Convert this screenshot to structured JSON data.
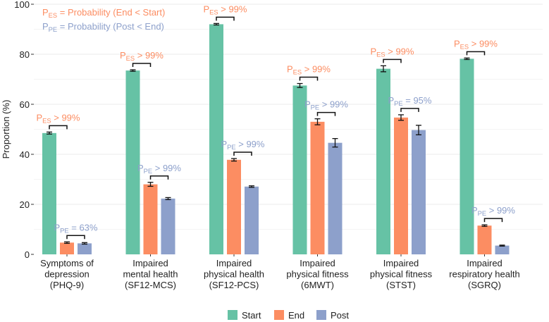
{
  "chart_data": {
    "type": "bar",
    "ylabel": "Proportion (%)",
    "ylim": [
      0,
      100
    ],
    "yticks": [
      "0",
      "20",
      "40",
      "60",
      "80",
      "100"
    ],
    "categories": [
      {
        "line1": "Symptoms of",
        "line2": "depression",
        "line3": "(PHQ-9)"
      },
      {
        "line1": "Impaired",
        "line2": "mental health",
        "line3": "(SF12-MCS)"
      },
      {
        "line1": "Impaired",
        "line2": "physical health",
        "line3": "(SF12-PCS)"
      },
      {
        "line1": "Impaired",
        "line2": "physical fitness",
        "line3": "(6MWT)"
      },
      {
        "line1": "Impaired",
        "line2": "physical fitness",
        "line3": "(STST)"
      },
      {
        "line1": "Impaired",
        "line2": "respiratory health",
        "line3": "(SGRQ)"
      }
    ],
    "series": [
      {
        "name": "Start",
        "color": "#66c2a5",
        "values": [
          48.5,
          73.5,
          92.0,
          67.5,
          74.2,
          78.2
        ],
        "errors": [
          0.4,
          0.3,
          0.3,
          0.8,
          1.2,
          0.3
        ]
      },
      {
        "name": "End",
        "color": "#fc8d62",
        "values": [
          4.7,
          28.0,
          37.8,
          53.0,
          54.7,
          11.5
        ],
        "errors": [
          0.3,
          0.8,
          0.5,
          1.2,
          1.1,
          0.3
        ]
      },
      {
        "name": "Post",
        "color": "#8da0cb",
        "values": [
          4.4,
          22.3,
          27.1,
          44.6,
          49.7,
          3.5
        ],
        "errors": [
          0.3,
          0.4,
          0.3,
          1.7,
          1.9,
          0.2
        ]
      }
    ],
    "legend": {
      "labels": [
        "Start",
        "End",
        "Post"
      ],
      "position": "bottom"
    },
    "annotations": {
      "es_color": "#fc8d62",
      "pe_color": "#8da0cb",
      "legend_es": {
        "p": "P",
        "sub": "ES",
        "text": " = Probability (End < Start)"
      },
      "legend_pe": {
        "p": "P",
        "sub": "PE",
        "text": " = Probability (Post < End)"
      },
      "es": [
        {
          "p": "P",
          "sub": "ES",
          "text": " > 99%"
        },
        {
          "p": "P",
          "sub": "ES",
          "text": " > 99%"
        },
        {
          "p": "P",
          "sub": "ES",
          "text": " > 99%"
        },
        {
          "p": "P",
          "sub": "ES",
          "text": " > 99%"
        },
        {
          "p": "P",
          "sub": "ES",
          "text": " > 99%"
        },
        {
          "p": "P",
          "sub": "ES",
          "text": " > 99%"
        }
      ],
      "pe": [
        {
          "p": "P",
          "sub": "PE",
          "text": " = 63%"
        },
        {
          "p": "P",
          "sub": "PE",
          "text": " > 99%"
        },
        {
          "p": "P",
          "sub": "PE",
          "text": " > 99%"
        },
        {
          "p": "P",
          "sub": "PE",
          "text": " > 99%"
        },
        {
          "p": "P",
          "sub": "PE",
          "text": " = 95%"
        },
        {
          "p": "P",
          "sub": "PE",
          "text": " > 99%"
        }
      ]
    }
  }
}
